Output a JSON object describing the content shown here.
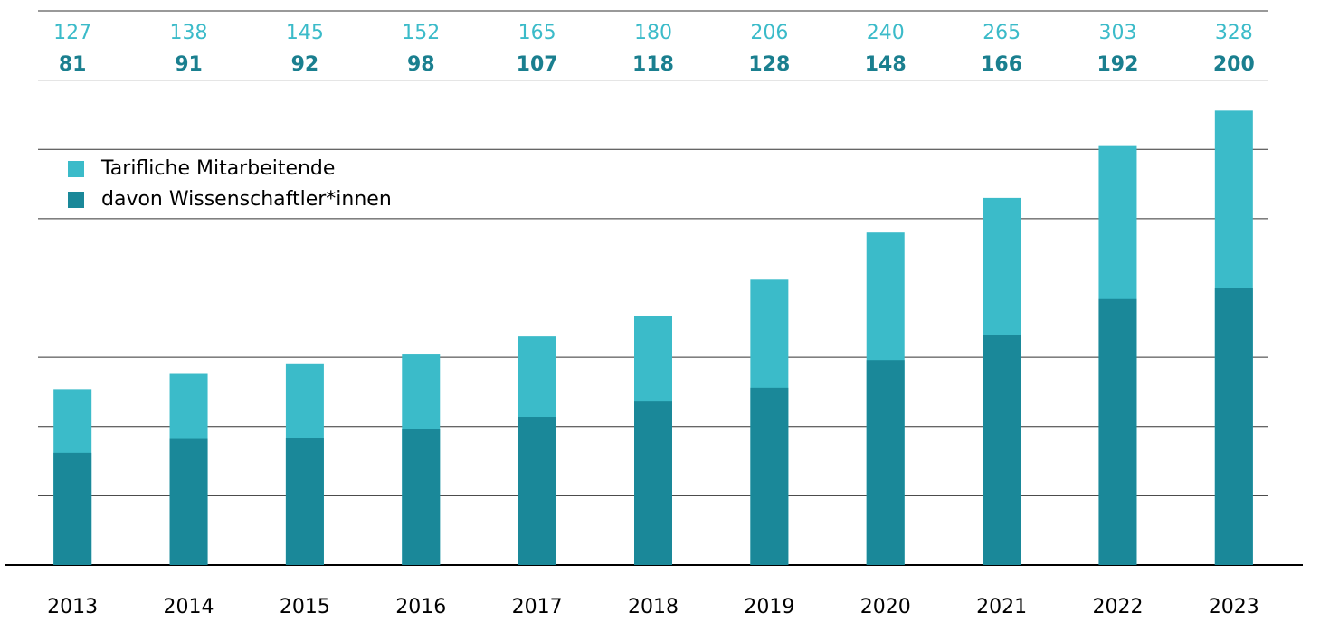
{
  "chart_data": {
    "type": "bar",
    "categories": [
      "2013",
      "2014",
      "2015",
      "2016",
      "2017",
      "2018",
      "2019",
      "2020",
      "2021",
      "2022",
      "2023"
    ],
    "series": [
      {
        "name": "Tarifliche Mitarbeitende",
        "color": "#3bbbc9",
        "values": [
          127,
          138,
          145,
          152,
          165,
          180,
          206,
          240,
          265,
          303,
          328
        ]
      },
      {
        "name": "davon Wissenschaftler*innen",
        "color": "#1a8899",
        "values": [
          81,
          91,
          92,
          98,
          107,
          118,
          128,
          148,
          166,
          192,
          200
        ]
      }
    ],
    "ylim": [
      0,
      400
    ],
    "yticks": [
      0,
      50,
      100,
      150,
      200,
      250,
      300,
      350,
      400
    ],
    "grid": true,
    "legend": "upper left"
  }
}
